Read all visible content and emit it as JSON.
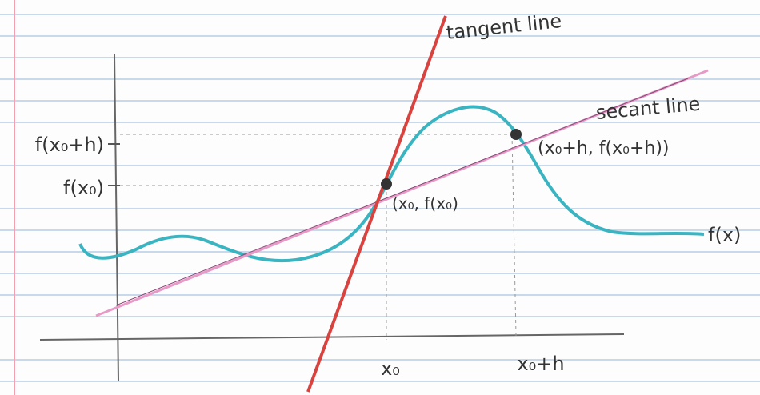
{
  "axes": {
    "y_ticks": [
      "f(x₀+h)",
      "f(x₀)"
    ],
    "x_ticks": [
      "x₀",
      "x₀+h"
    ]
  },
  "lines": {
    "tangent": "tangent line",
    "secant": "secant line"
  },
  "curve": {
    "label": "f(x)"
  },
  "points": [
    "(x₀, f(x₀)",
    "(x₀+h, f(x₀+h))"
  ]
}
